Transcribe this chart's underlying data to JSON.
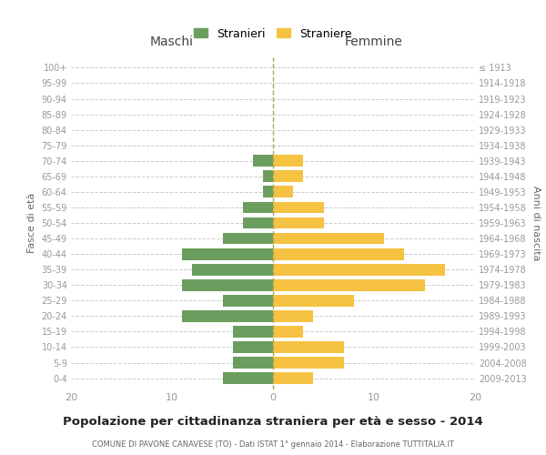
{
  "age_groups": [
    "0-4",
    "5-9",
    "10-14",
    "15-19",
    "20-24",
    "25-29",
    "30-34",
    "35-39",
    "40-44",
    "45-49",
    "50-54",
    "55-59",
    "60-64",
    "65-69",
    "70-74",
    "75-79",
    "80-84",
    "85-89",
    "90-94",
    "95-99",
    "100+"
  ],
  "birth_years": [
    "2009-2013",
    "2004-2008",
    "1999-2003",
    "1994-1998",
    "1989-1993",
    "1984-1988",
    "1979-1983",
    "1974-1978",
    "1969-1973",
    "1964-1968",
    "1959-1963",
    "1954-1958",
    "1949-1953",
    "1944-1948",
    "1939-1943",
    "1934-1938",
    "1929-1933",
    "1924-1928",
    "1919-1923",
    "1914-1918",
    "≤ 1913"
  ],
  "maschi": [
    5,
    4,
    4,
    4,
    9,
    5,
    9,
    8,
    9,
    5,
    3,
    3,
    1,
    1,
    2,
    0,
    0,
    0,
    0,
    0,
    0
  ],
  "femmine": [
    4,
    7,
    7,
    3,
    4,
    8,
    15,
    17,
    13,
    11,
    5,
    5,
    2,
    3,
    3,
    0,
    0,
    0,
    0,
    0,
    0
  ],
  "color_maschi": "#6b9e5e",
  "color_femmine": "#f5c242",
  "title": "Popolazione per cittadinanza straniera per età e sesso - 2014",
  "subtitle": "COMUNE DI PAVONE CANAVESE (TO) - Dati ISTAT 1° gennaio 2014 - Elaborazione TUTTITALIA.IT",
  "xlabel_left": "Maschi",
  "xlabel_right": "Femmine",
  "ylabel_left": "Fasce di età",
  "ylabel_right": "Anni di nascita",
  "xlim": 20,
  "legend_stranieri": "Stranieri",
  "legend_straniere": "Straniere",
  "background_color": "#ffffff",
  "grid_color": "#cccccc",
  "axis_label_color": "#666666",
  "tick_label_color": "#999999"
}
